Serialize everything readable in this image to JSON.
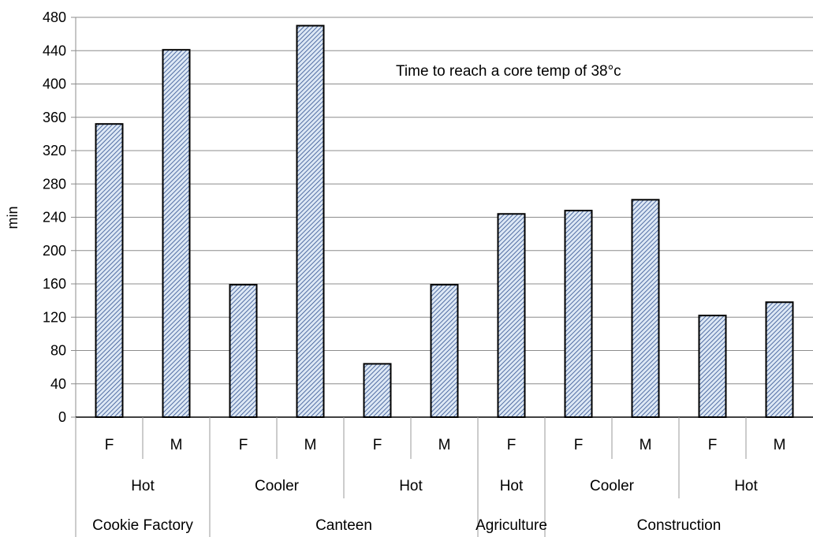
{
  "chart_data": {
    "type": "bar",
    "title": "",
    "annotation": "Time to reach a core temp of 38°c",
    "ylabel": "min",
    "xlabel": "",
    "ylim": [
      0,
      480
    ],
    "yticks": [
      0,
      40,
      80,
      120,
      160,
      200,
      240,
      280,
      320,
      360,
      400,
      440,
      480
    ],
    "grid": true,
    "legend": "none",
    "bar_fill": "#dde8f5",
    "bar_hatch": "#2f4f8f",
    "bar_stroke": "#000000",
    "categories": [
      "F",
      "M",
      "F",
      "M",
      "F",
      "M",
      "F",
      "F",
      "M",
      "F",
      "M"
    ],
    "values": [
      352,
      441,
      159,
      470,
      64,
      159,
      244,
      248,
      261,
      122,
      138
    ],
    "groups_level2": [
      {
        "label": "Hot",
        "span": 2
      },
      {
        "label": "Cooler",
        "span": 2
      },
      {
        "label": "Hot",
        "span": 2
      },
      {
        "label": "Hot",
        "span": 1
      },
      {
        "label": "Cooler",
        "span": 2
      },
      {
        "label": "Hot",
        "span": 2
      }
    ],
    "groups_level3": [
      {
        "label": "Cookie Factory",
        "span": 2
      },
      {
        "label": "Canteen",
        "span": 4
      },
      {
        "label": "Agriculture",
        "span": 1
      },
      {
        "label": "Construction",
        "span": 4
      }
    ]
  }
}
